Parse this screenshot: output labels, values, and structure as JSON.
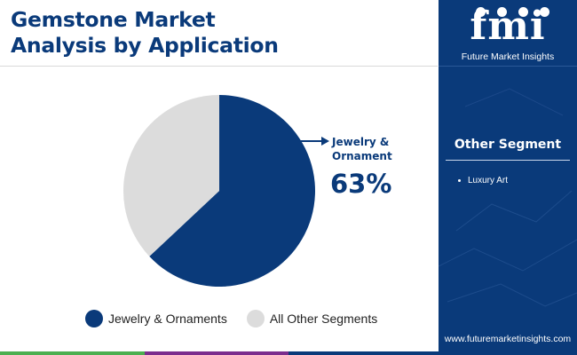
{
  "title": {
    "line1": "Gemstone Market",
    "line2": "Analysis by Application"
  },
  "chart_data": {
    "type": "pie",
    "categories": [
      "Jewelry & Ornaments",
      "All Other Segments"
    ],
    "values": [
      63,
      37
    ],
    "unit": "%",
    "colors": [
      "#0a3a7a",
      "#dcdcdc"
    ],
    "callout": {
      "label_line1": "Jewelry &",
      "label_line2": "Ornament",
      "value": "63%"
    },
    "legend_position": "bottom"
  },
  "legend": [
    {
      "label": "Jewelry & Ornaments",
      "color": "#0a3a7a"
    },
    {
      "label": "All Other Segments",
      "color": "#dcdcdc"
    }
  ],
  "panel": {
    "logo_text": "fmi",
    "logo_subtitle": "Future Market Insights",
    "other_heading": "Other Segment",
    "other_items": [
      "Luxury Art"
    ],
    "website": "www.futuremarketinsights.com",
    "background_color": "#0a3a7a"
  },
  "bottom_bar_colors": [
    "#4caf50",
    "#7b2d8e",
    "#0a3a7a",
    "#0a3a7a"
  ]
}
